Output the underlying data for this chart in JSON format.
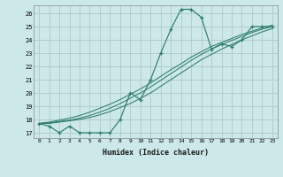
{
  "xlabel": "Humidex (Indice chaleur)",
  "ylabel": "",
  "bg_color": "#cce8e8",
  "grid_color": "#b0c8c8",
  "line_color": "#2e7d6e",
  "xlim": [
    -0.5,
    23.5
  ],
  "ylim": [
    16.6,
    26.6
  ],
  "yticks": [
    17,
    18,
    19,
    20,
    21,
    22,
    23,
    24,
    25,
    26
  ],
  "xticks": [
    0,
    1,
    2,
    3,
    4,
    5,
    6,
    7,
    8,
    9,
    10,
    11,
    12,
    13,
    14,
    15,
    16,
    17,
    18,
    19,
    20,
    21,
    22,
    23
  ],
  "series": {
    "main": [
      17.7,
      17.5,
      17.0,
      17.5,
      17.0,
      17.0,
      17.0,
      17.0,
      18.0,
      20.0,
      19.5,
      21.0,
      23.0,
      24.8,
      26.3,
      26.3,
      25.7,
      23.3,
      23.7,
      23.5,
      24.0,
      25.0,
      25.0,
      25.0
    ],
    "line2": [
      17.7,
      17.7,
      17.8,
      17.9,
      18.0,
      18.15,
      18.35,
      18.6,
      18.9,
      19.2,
      19.6,
      20.0,
      20.5,
      21.0,
      21.5,
      22.0,
      22.5,
      22.9,
      23.3,
      23.65,
      24.0,
      24.3,
      24.6,
      24.85
    ],
    "line3": [
      17.7,
      17.75,
      17.85,
      17.95,
      18.1,
      18.3,
      18.55,
      18.85,
      19.2,
      19.6,
      20.0,
      20.45,
      20.95,
      21.45,
      21.95,
      22.45,
      22.9,
      23.3,
      23.65,
      23.95,
      24.25,
      24.55,
      24.8,
      25.0
    ],
    "line4": [
      17.7,
      17.8,
      17.95,
      18.1,
      18.3,
      18.55,
      18.85,
      19.15,
      19.5,
      19.9,
      20.3,
      20.75,
      21.25,
      21.75,
      22.2,
      22.7,
      23.1,
      23.5,
      23.8,
      24.1,
      24.4,
      24.65,
      24.9,
      25.1
    ]
  }
}
